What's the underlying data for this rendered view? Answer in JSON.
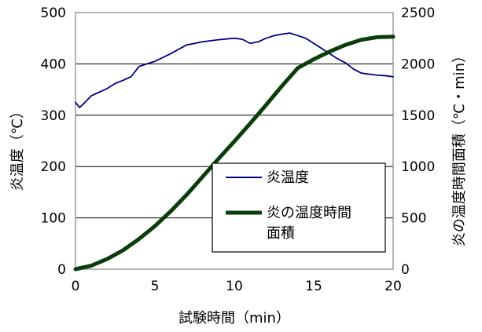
{
  "chart_data": {
    "type": "line",
    "title": "",
    "xlabel": "試験時間（min）",
    "ylabel_left": "炎温度（℃）",
    "ylabel_right": "炎の温度時間面積（℃・min）",
    "xlim": [
      0,
      20
    ],
    "ylim_left": [
      0,
      500
    ],
    "ylim_right": [
      0,
      2500
    ],
    "x_ticks": [
      "0",
      "5",
      "10",
      "15",
      "20"
    ],
    "y_ticks_left": [
      "0",
      "100",
      "200",
      "300",
      "400",
      "500"
    ],
    "y_ticks_right": [
      "0",
      "500",
      "1000",
      "1500",
      "2000",
      "2500"
    ],
    "grid": true,
    "legend_position": "center-right",
    "series": [
      {
        "name": "炎温度",
        "axis": "left",
        "color": "#000080",
        "x": [
          0,
          0.25,
          0.5,
          1,
          1.5,
          2,
          2.5,
          3,
          3.5,
          4,
          4.5,
          5,
          6,
          7,
          8,
          9,
          10,
          10.5,
          11,
          11.5,
          12,
          12.5,
          13,
          13.5,
          14,
          14.5,
          15,
          15.5,
          16,
          16.5,
          17,
          17.5,
          18,
          18.5,
          19,
          19.5,
          20
        ],
        "values": [
          325,
          315,
          322,
          338,
          345,
          352,
          362,
          368,
          375,
          395,
          400,
          405,
          420,
          437,
          443,
          447,
          450,
          448,
          440,
          443,
          450,
          455,
          458,
          460,
          455,
          450,
          440,
          430,
          420,
          410,
          402,
          390,
          382,
          380,
          378,
          377,
          375
        ]
      },
      {
        "name": "炎の温度時間面積",
        "axis": "right",
        "color": "#0b3d0b",
        "x": [
          0,
          1,
          2,
          3,
          4,
          5,
          6,
          7,
          8,
          9,
          10,
          11,
          12,
          13,
          14,
          15,
          16,
          17,
          18,
          19,
          20
        ],
        "values": [
          0,
          35,
          100,
          185,
          295,
          420,
          565,
          725,
          900,
          1075,
          1245,
          1420,
          1600,
          1785,
          1960,
          2045,
          2120,
          2185,
          2235,
          2260,
          2265
        ]
      }
    ],
    "legend_labels": [
      "炎温度",
      "炎の温度時間",
      "面積"
    ]
  }
}
